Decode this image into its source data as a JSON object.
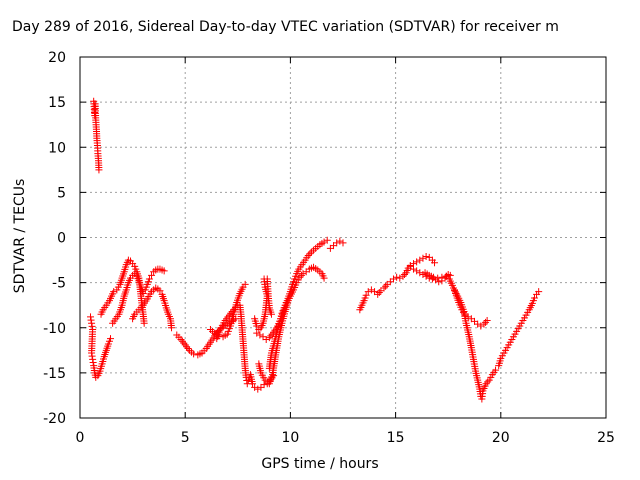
{
  "chart_data": {
    "type": "scatter",
    "title": "Day 289 of 2016, Sidereal Day-to-day VTEC variation (SDTVAR) for receiver m",
    "xlabel": "GPS time / hours",
    "ylabel": "SDTVAR / TECUs",
    "xlim": [
      0,
      25
    ],
    "ylim": [
      -20,
      20
    ],
    "xticks": [
      0,
      5,
      10,
      15,
      20,
      25
    ],
    "yticks": [
      -20,
      -15,
      -10,
      -5,
      0,
      5,
      10,
      15,
      20
    ],
    "grid": true,
    "marker": "+",
    "color": "#ff0000",
    "series": [
      {
        "points": [
          [
            0.65,
            15.1
          ],
          [
            0.68,
            14.2
          ],
          [
            0.7,
            13.5
          ],
          [
            0.72,
            14.8
          ],
          [
            0.75,
            13.0
          ],
          [
            0.78,
            12.0
          ],
          [
            0.8,
            11.0
          ],
          [
            0.83,
            10.2
          ],
          [
            0.85,
            9.3
          ],
          [
            0.88,
            8.5
          ],
          [
            0.9,
            7.5
          ]
        ]
      },
      {
        "points": [
          [
            0.5,
            -8.8
          ],
          [
            0.55,
            -9.5
          ],
          [
            0.6,
            -10.2
          ],
          [
            0.55,
            -12.8
          ],
          [
            0.6,
            -13.5
          ],
          [
            0.65,
            -14.2
          ],
          [
            0.7,
            -15.0
          ],
          [
            0.75,
            -15.5
          ],
          [
            0.85,
            -15.3
          ],
          [
            0.95,
            -14.8
          ],
          [
            1.05,
            -14.0
          ],
          [
            1.15,
            -13.2
          ],
          [
            1.25,
            -12.5
          ],
          [
            1.35,
            -11.8
          ],
          [
            1.45,
            -11.2
          ]
        ]
      },
      {
        "points": [
          [
            1.0,
            -8.5
          ],
          [
            1.1,
            -8.0
          ],
          [
            1.25,
            -7.5
          ],
          [
            1.4,
            -7.0
          ],
          [
            1.5,
            -6.5
          ],
          [
            1.6,
            -6.0
          ],
          [
            1.75,
            -5.8
          ],
          [
            1.9,
            -5.2
          ],
          [
            2.0,
            -4.5
          ],
          [
            2.1,
            -3.8
          ],
          [
            2.2,
            -3.0
          ],
          [
            2.3,
            -2.5
          ],
          [
            2.4,
            -2.6
          ],
          [
            2.5,
            -2.9
          ],
          [
            2.6,
            -3.2
          ],
          [
            2.7,
            -3.8
          ],
          [
            2.8,
            -4.5
          ],
          [
            2.85,
            -5.5
          ],
          [
            2.9,
            -6.5
          ],
          [
            2.95,
            -7.5
          ],
          [
            3.0,
            -8.5
          ],
          [
            3.05,
            -9.5
          ]
        ]
      },
      {
        "points": [
          [
            1.55,
            -9.5
          ],
          [
            1.7,
            -9.0
          ],
          [
            1.85,
            -8.5
          ],
          [
            2.0,
            -7.5
          ],
          [
            2.1,
            -6.5
          ],
          [
            2.2,
            -5.8
          ],
          [
            2.3,
            -5.0
          ],
          [
            2.4,
            -4.5
          ],
          [
            2.5,
            -4.2
          ],
          [
            2.6,
            -4.0
          ],
          [
            2.7,
            -4.3
          ],
          [
            2.8,
            -4.8
          ],
          [
            2.9,
            -5.5
          ],
          [
            3.0,
            -6.2
          ],
          [
            3.1,
            -5.8
          ],
          [
            3.2,
            -5.2
          ],
          [
            3.3,
            -4.6
          ],
          [
            3.4,
            -4.2
          ],
          [
            3.5,
            -3.8
          ],
          [
            3.6,
            -3.6
          ],
          [
            3.7,
            -3.5
          ],
          [
            3.8,
            -3.5
          ],
          [
            3.9,
            -3.6
          ],
          [
            4.0,
            -3.7
          ]
        ]
      },
      {
        "points": [
          [
            2.5,
            -9.0
          ],
          [
            2.6,
            -8.5
          ],
          [
            2.8,
            -8.0
          ],
          [
            3.0,
            -7.5
          ],
          [
            3.2,
            -6.8
          ],
          [
            3.4,
            -6.0
          ],
          [
            3.5,
            -5.8
          ],
          [
            3.6,
            -5.6
          ],
          [
            3.7,
            -5.7
          ],
          [
            3.8,
            -5.9
          ],
          [
            3.9,
            -6.3
          ],
          [
            4.0,
            -7.0
          ],
          [
            4.1,
            -7.8
          ],
          [
            4.2,
            -8.5
          ],
          [
            4.3,
            -9.0
          ],
          [
            4.35,
            -10.0
          ]
        ]
      },
      {
        "points": [
          [
            4.6,
            -10.8
          ],
          [
            4.8,
            -11.3
          ],
          [
            5.0,
            -11.9
          ],
          [
            5.2,
            -12.5
          ],
          [
            5.4,
            -12.9
          ],
          [
            5.6,
            -13.0
          ],
          [
            5.8,
            -12.8
          ],
          [
            6.0,
            -12.3
          ],
          [
            6.2,
            -11.6
          ],
          [
            6.4,
            -10.9
          ],
          [
            6.6,
            -10.3
          ],
          [
            6.8,
            -9.9
          ],
          [
            7.0,
            -9.6
          ],
          [
            7.2,
            -9.3
          ],
          [
            7.4,
            -9.0
          ]
        ]
      },
      {
        "points": [
          [
            6.2,
            -10.2
          ],
          [
            6.4,
            -10.6
          ],
          [
            6.6,
            -10.9
          ],
          [
            6.8,
            -11.0
          ],
          [
            7.0,
            -10.7
          ],
          [
            7.15,
            -9.8
          ],
          [
            7.3,
            -8.5
          ],
          [
            7.45,
            -7.2
          ],
          [
            7.6,
            -6.2
          ],
          [
            7.75,
            -5.5
          ],
          [
            7.85,
            -5.2
          ]
        ]
      },
      {
        "points": [
          [
            6.5,
            -11.2
          ],
          [
            6.7,
            -10.0
          ],
          [
            6.9,
            -9.2
          ],
          [
            7.1,
            -8.6
          ],
          [
            7.3,
            -8.0
          ],
          [
            7.5,
            -7.5
          ],
          [
            7.6,
            -7.5
          ],
          [
            7.65,
            -8.5
          ],
          [
            7.7,
            -10.0
          ],
          [
            7.75,
            -11.5
          ],
          [
            7.8,
            -13.0
          ],
          [
            7.85,
            -14.5
          ],
          [
            7.9,
            -15.5
          ],
          [
            7.95,
            -16.2
          ],
          [
            8.0,
            -15.8
          ],
          [
            8.1,
            -15.2
          ],
          [
            8.2,
            -16.2
          ],
          [
            8.3,
            -16.6
          ],
          [
            8.45,
            -16.8
          ],
          [
            8.6,
            -16.6
          ],
          [
            8.75,
            -16.3
          ],
          [
            8.9,
            -16.2
          ],
          [
            9.05,
            -15.8
          ],
          [
            9.2,
            -15.3
          ]
        ]
      },
      {
        "points": [
          [
            8.3,
            -9.0
          ],
          [
            8.4,
            -9.8
          ],
          [
            8.5,
            -10.2
          ],
          [
            8.6,
            -10.0
          ],
          [
            8.7,
            -9.5
          ],
          [
            8.8,
            -8.5
          ],
          [
            8.85,
            -7.5
          ],
          [
            8.9,
            -6.5
          ],
          [
            8.8,
            -5.5
          ],
          [
            8.75,
            -4.6
          ],
          [
            8.9,
            -4.6
          ],
          [
            8.95,
            -6.5
          ],
          [
            9.0,
            -7.8
          ],
          [
            9.1,
            -8.5
          ]
        ]
      },
      {
        "points": [
          [
            8.4,
            -10.6
          ],
          [
            8.55,
            -10.8
          ],
          [
            8.7,
            -11.0
          ],
          [
            8.85,
            -11.3
          ],
          [
            9.0,
            -11.1
          ],
          [
            9.2,
            -10.5
          ],
          [
            9.4,
            -9.8
          ],
          [
            9.55,
            -9.0
          ],
          [
            9.7,
            -8.0
          ],
          [
            9.85,
            -7.0
          ],
          [
            10.0,
            -6.0
          ],
          [
            10.1,
            -5.2
          ],
          [
            10.2,
            -4.6
          ],
          [
            10.3,
            -4.0
          ],
          [
            10.4,
            -3.5
          ],
          [
            10.55,
            -3.0
          ],
          [
            10.7,
            -2.5
          ],
          [
            10.85,
            -2.0
          ],
          [
            11.0,
            -1.6
          ],
          [
            11.2,
            -1.2
          ],
          [
            11.4,
            -0.8
          ],
          [
            11.6,
            -0.5
          ],
          [
            11.75,
            -0.3
          ]
        ]
      },
      {
        "points": [
          [
            8.5,
            -14.0
          ],
          [
            8.6,
            -15.0
          ],
          [
            8.8,
            -15.8
          ],
          [
            9.0,
            -16.2
          ],
          [
            9.15,
            -15.2
          ],
          [
            9.3,
            -13.0
          ],
          [
            9.45,
            -11.0
          ],
          [
            9.6,
            -9.5
          ],
          [
            9.75,
            -8.2
          ],
          [
            9.9,
            -7.0
          ],
          [
            10.0,
            -6.5
          ],
          [
            10.15,
            -5.8
          ],
          [
            10.3,
            -5.0
          ],
          [
            10.45,
            -4.4
          ],
          [
            10.6,
            -4.0
          ],
          [
            10.75,
            -3.8
          ],
          [
            10.9,
            -3.5
          ],
          [
            11.1,
            -3.3
          ],
          [
            11.3,
            -3.6
          ],
          [
            11.5,
            -4.0
          ],
          [
            11.6,
            -4.5
          ]
        ]
      },
      {
        "points": [
          [
            9.0,
            -14.5
          ],
          [
            9.1,
            -12.8
          ],
          [
            9.25,
            -11.5
          ],
          [
            9.4,
            -10.2
          ],
          [
            9.5,
            -9.3
          ],
          [
            9.6,
            -8.4
          ],
          [
            9.7,
            -7.8
          ],
          [
            9.8,
            -7.2
          ]
        ]
      },
      {
        "points": [
          [
            11.9,
            -1.2
          ],
          [
            12.05,
            -0.9
          ],
          [
            12.2,
            -0.6
          ],
          [
            12.35,
            -0.4
          ],
          [
            12.5,
            -0.6
          ]
        ]
      },
      {
        "points": [
          [
            13.3,
            -8.0
          ],
          [
            13.4,
            -7.5
          ],
          [
            13.5,
            -7.0
          ],
          [
            13.6,
            -6.4
          ],
          [
            13.7,
            -6.0
          ],
          [
            13.85,
            -5.8
          ],
          [
            14.0,
            -6.0
          ],
          [
            14.15,
            -6.3
          ],
          [
            14.3,
            -5.9
          ],
          [
            14.45,
            -5.6
          ],
          [
            14.6,
            -5.2
          ],
          [
            14.75,
            -4.9
          ],
          [
            14.9,
            -4.6
          ],
          [
            15.05,
            -4.4
          ],
          [
            15.2,
            -4.5
          ],
          [
            15.35,
            -4.3
          ],
          [
            15.5,
            -3.9
          ],
          [
            15.6,
            -3.4
          ],
          [
            15.7,
            -3.1
          ],
          [
            15.85,
            -2.9
          ],
          [
            16.0,
            -2.7
          ],
          [
            16.15,
            -2.5
          ],
          [
            16.3,
            -2.3
          ],
          [
            16.45,
            -2.1
          ],
          [
            16.6,
            -2.2
          ],
          [
            16.75,
            -2.5
          ],
          [
            16.85,
            -2.8
          ]
        ]
      },
      {
        "points": [
          [
            15.7,
            -3.2
          ],
          [
            15.85,
            -3.5
          ],
          [
            16.0,
            -3.7
          ],
          [
            16.15,
            -3.9
          ],
          [
            16.3,
            -4.1
          ],
          [
            16.45,
            -4.3
          ],
          [
            16.6,
            -4.5
          ],
          [
            16.75,
            -4.6
          ],
          [
            16.9,
            -4.7
          ],
          [
            17.05,
            -4.9
          ],
          [
            17.2,
            -4.8
          ],
          [
            17.35,
            -4.5
          ],
          [
            17.5,
            -4.1
          ],
          [
            17.6,
            -4.2
          ]
        ]
      },
      {
        "points": [
          [
            16.4,
            -3.9
          ],
          [
            16.6,
            -4.2
          ],
          [
            16.8,
            -4.4
          ],
          [
            17.0,
            -4.5
          ],
          [
            17.2,
            -4.4
          ],
          [
            17.4,
            -4.3
          ],
          [
            17.55,
            -4.6
          ],
          [
            17.7,
            -5.3
          ],
          [
            17.85,
            -6.2
          ],
          [
            18.0,
            -7.2
          ],
          [
            18.15,
            -8.0
          ],
          [
            18.3,
            -8.6
          ],
          [
            18.45,
            -8.8
          ],
          [
            18.6,
            -9.0
          ],
          [
            18.75,
            -9.3
          ],
          [
            18.9,
            -9.6
          ],
          [
            19.05,
            -9.8
          ],
          [
            19.2,
            -9.6
          ],
          [
            19.35,
            -9.2
          ]
        ]
      },
      {
        "points": [
          [
            17.8,
            -5.8
          ],
          [
            17.95,
            -6.5
          ],
          [
            18.1,
            -7.2
          ],
          [
            18.25,
            -8.2
          ],
          [
            18.35,
            -9.5
          ],
          [
            18.5,
            -11.0
          ],
          [
            18.6,
            -12.2
          ],
          [
            18.7,
            -13.5
          ],
          [
            18.8,
            -14.8
          ],
          [
            18.9,
            -15.8
          ],
          [
            19.0,
            -16.8
          ],
          [
            19.05,
            -17.6
          ],
          [
            19.1,
            -17.9
          ],
          [
            19.15,
            -17.0
          ],
          [
            19.3,
            -16.2
          ],
          [
            19.45,
            -15.8
          ],
          [
            19.6,
            -15.2
          ],
          [
            19.75,
            -14.7
          ]
        ]
      },
      {
        "points": [
          [
            19.9,
            -14.2
          ],
          [
            20.0,
            -13.4
          ],
          [
            20.15,
            -12.8
          ],
          [
            20.3,
            -12.2
          ],
          [
            20.45,
            -11.6
          ],
          [
            20.6,
            -11.0
          ],
          [
            20.75,
            -10.4
          ],
          [
            20.9,
            -9.8
          ],
          [
            21.05,
            -9.2
          ],
          [
            21.2,
            -8.6
          ],
          [
            21.35,
            -8.0
          ],
          [
            21.5,
            -7.3
          ],
          [
            21.6,
            -6.7
          ],
          [
            21.7,
            -6.3
          ],
          [
            21.8,
            -6.0
          ]
        ]
      }
    ]
  }
}
